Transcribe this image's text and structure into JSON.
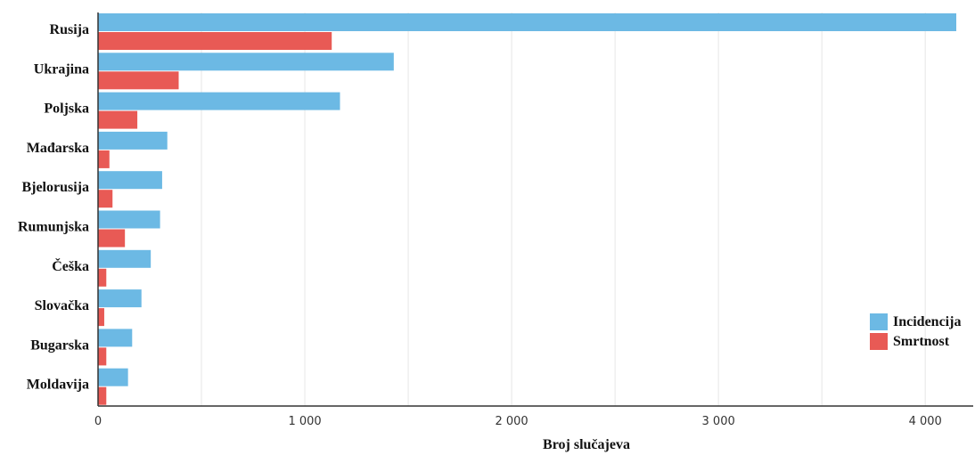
{
  "chart_data": {
    "type": "bar",
    "orientation": "horizontal",
    "categories": [
      "Rusija",
      "Ukrajina",
      "Poljska",
      "Mađarska",
      "Bjelorusija",
      "Rumunjska",
      "Češka",
      "Slovačka",
      "Bugarska",
      "Moldavija"
    ],
    "series": [
      {
        "name": "Incidencija",
        "color": "#6cb9e4",
        "values": [
          4150,
          1430,
          1170,
          335,
          310,
          300,
          255,
          210,
          165,
          145
        ]
      },
      {
        "name": "Smrtnost",
        "color": "#e85a55",
        "values": [
          1130,
          390,
          190,
          55,
          70,
          130,
          40,
          30,
          40,
          40
        ]
      }
    ],
    "xlabel": "Broj slučajeva",
    "xlim": [
      0,
      4200
    ],
    "x_ticks": [
      0,
      1000,
      2000,
      3000,
      4000
    ],
    "x_tick_labels": [
      "0",
      "1 000",
      "2 000",
      "3 000",
      "4 000"
    ],
    "grid": true,
    "legend_position": "right"
  }
}
